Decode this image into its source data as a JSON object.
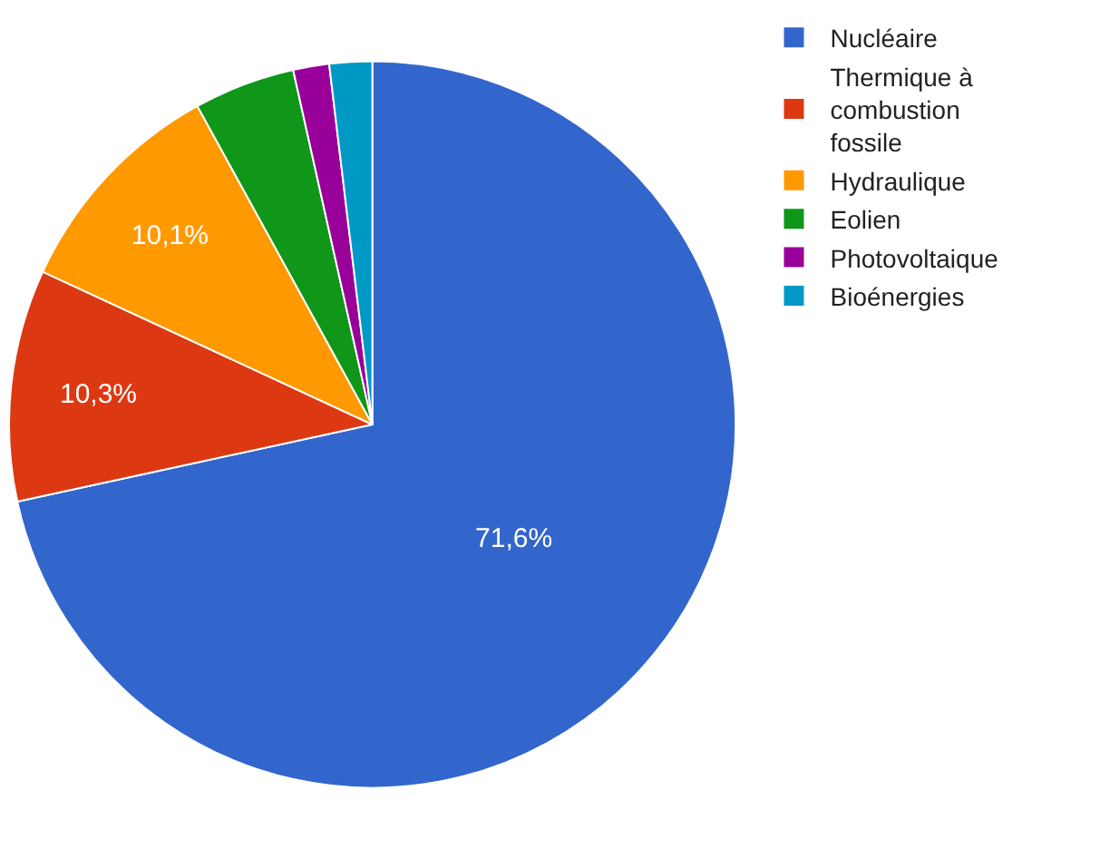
{
  "chart_data": {
    "type": "pie",
    "categories": [
      "Nucléaire",
      "Thermique à combustion fossile",
      "Hydraulique",
      "Eolien",
      "Photovoltaique",
      "Bioénergies"
    ],
    "values": [
      71.6,
      10.3,
      10.1,
      4.5,
      1.6,
      1.9
    ],
    "value_labels": [
      "71,6%",
      "10,3%",
      "10,1%",
      null,
      null,
      null
    ],
    "colors": [
      "#3366cc",
      "#dc3912",
      "#ff9900",
      "#109618",
      "#990099",
      "#0099c6"
    ],
    "legend": "top right"
  }
}
